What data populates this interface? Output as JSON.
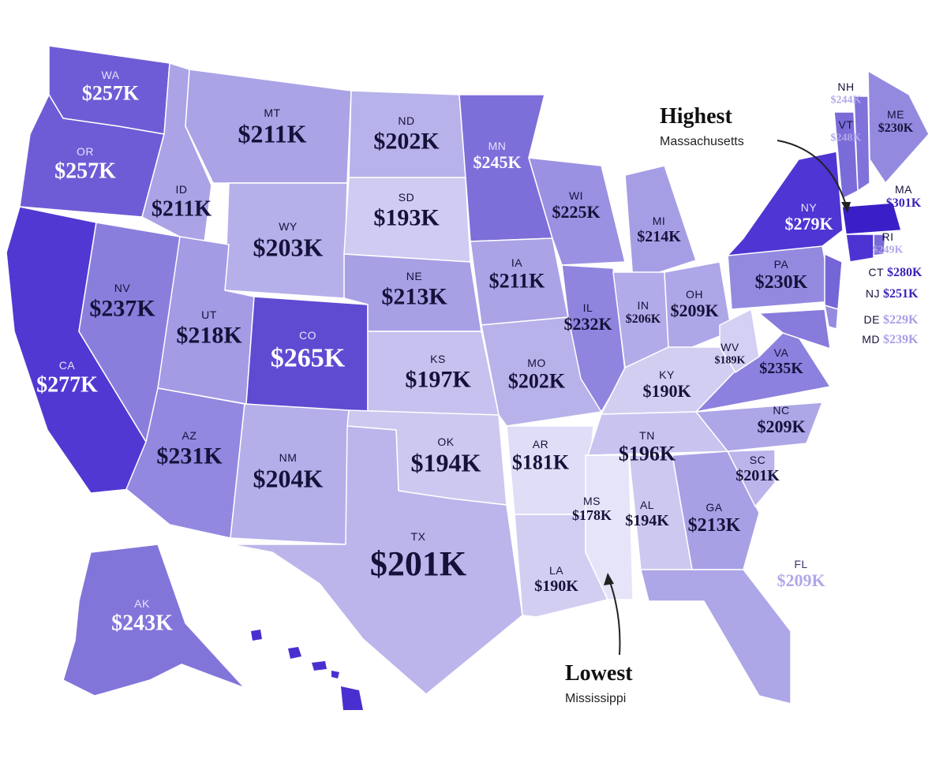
{
  "states": [
    {
      "code": "WA",
      "value": "$257K",
      "color": "#6e5cd6"
    },
    {
      "code": "OR",
      "value": "$257K",
      "color": "#6e5cd6"
    },
    {
      "code": "CA",
      "value": "$277K",
      "color": "#5238d2"
    },
    {
      "code": "NV",
      "value": "$237K",
      "color": "#8a7edd"
    },
    {
      "code": "ID",
      "value": "$211K",
      "color": "#aaa3e6"
    },
    {
      "code": "MT",
      "value": "$211K",
      "color": "#aaa3e6"
    },
    {
      "code": "WY",
      "value": "$203K",
      "color": "#b6b0ea"
    },
    {
      "code": "UT",
      "value": "$218K",
      "color": "#a39be4"
    },
    {
      "code": "CO",
      "value": "$265K",
      "color": "#5f4bd2"
    },
    {
      "code": "AZ",
      "value": "$231K",
      "color": "#9288e0"
    },
    {
      "code": "NM",
      "value": "$204K",
      "color": "#b4aee9"
    },
    {
      "code": "ND",
      "value": "$202K",
      "color": "#b8b2ea"
    },
    {
      "code": "SD",
      "value": "$193K",
      "color": "#cfcbf2"
    },
    {
      "code": "NE",
      "value": "$213K",
      "color": "#a8a0e5"
    },
    {
      "code": "KS",
      "value": "$197K",
      "color": "#c6c1ee"
    },
    {
      "code": "OK",
      "value": "$194K",
      "color": "#ccc8f0"
    },
    {
      "code": "TX",
      "value": "$201K",
      "color": "#bbb5eb"
    },
    {
      "code": "MN",
      "value": "$245K",
      "color": "#7d6fd9"
    },
    {
      "code": "IA",
      "value": "$211K",
      "color": "#aaa3e6"
    },
    {
      "code": "MO",
      "value": "$202K",
      "color": "#b8b2ea"
    },
    {
      "code": "AR",
      "value": "$181K",
      "color": "#e0ddf7"
    },
    {
      "code": "LA",
      "value": "$190K",
      "color": "#d2cef2"
    },
    {
      "code": "WI",
      "value": "$225K",
      "color": "#9a91e2"
    },
    {
      "code": "IL",
      "value": "$232K",
      "color": "#8f85df"
    },
    {
      "code": "MI",
      "value": "$214K",
      "color": "#a69ee5"
    },
    {
      "code": "IN",
      "value": "$206K",
      "color": "#b2abe9"
    },
    {
      "code": "OH",
      "value": "$209K",
      "color": "#ada6e7"
    },
    {
      "code": "KY",
      "value": "$190K",
      "color": "#d2cef2"
    },
    {
      "code": "TN",
      "value": "$196K",
      "color": "#c8c3ef"
    },
    {
      "code": "MS",
      "value": "$178K",
      "color": "#e6e4f9"
    },
    {
      "code": "AL",
      "value": "$194K",
      "color": "#ccc8f0"
    },
    {
      "code": "GA",
      "value": "$213K",
      "color": "#a8a0e5"
    },
    {
      "code": "FL",
      "value": "$209K",
      "color": "#ada6e7"
    },
    {
      "code": "SC",
      "value": "$201K",
      "color": "#bbb5eb"
    },
    {
      "code": "NC",
      "value": "$209K",
      "color": "#ada6e7"
    },
    {
      "code": "VA",
      "value": "$235K",
      "color": "#8c81de"
    },
    {
      "code": "WV",
      "value": "$189K",
      "color": "#d4d0f3"
    },
    {
      "code": "PA",
      "value": "$230K",
      "color": "#938ae0"
    },
    {
      "code": "NY",
      "value": "$279K",
      "color": "#4f35d3"
    },
    {
      "code": "ME",
      "value": "$230K",
      "color": "#938ae0"
    },
    {
      "code": "NH",
      "value": "$244K",
      "color": "#7f72da"
    },
    {
      "code": "VT",
      "value": "$248K",
      "color": "#7a6cd8"
    },
    {
      "code": "MA",
      "value": "$301K",
      "color": "#3a1fc8"
    },
    {
      "code": "RI",
      "value": "$249K",
      "color": "#786ad8"
    },
    {
      "code": "CT",
      "value": "$280K",
      "color": "#4d33d2"
    },
    {
      "code": "NJ",
      "value": "$251K",
      "color": "#7566d7"
    },
    {
      "code": "DE",
      "value": "$229K",
      "color": "#958ce1"
    },
    {
      "code": "MD",
      "value": "$239K",
      "color": "#877bdc"
    },
    {
      "code": "AK",
      "value": "$243K",
      "color": "#8275da"
    }
  ],
  "highest": {
    "title": "Highest",
    "state": "Massachusetts"
  },
  "lowest": {
    "title": "Lowest",
    "state": "Mississippi"
  }
}
